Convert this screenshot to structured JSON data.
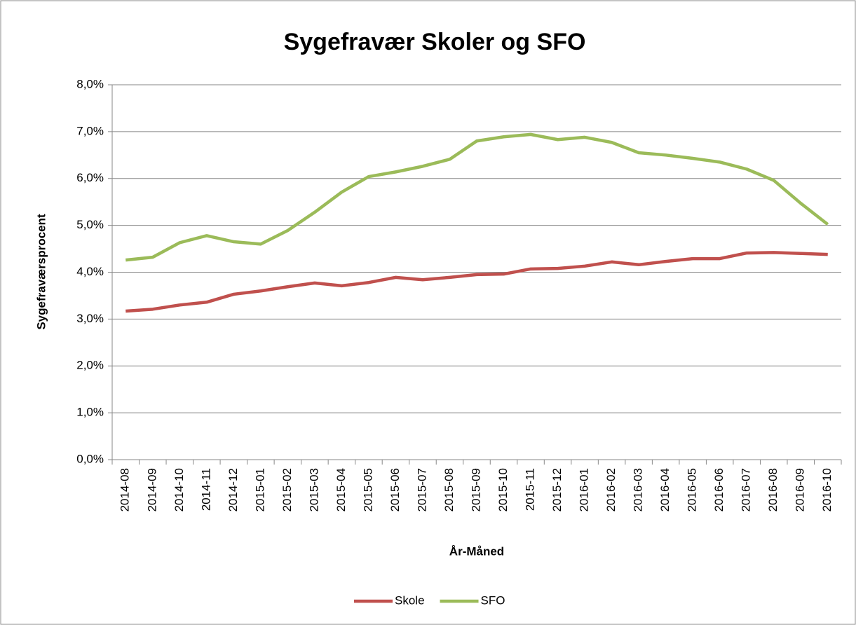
{
  "chart_data": {
    "type": "line",
    "title": "Sygefravær Skoler og SFO",
    "xlabel": "År-Måned",
    "ylabel": "Sygefraværsprocent",
    "categories": [
      "2014-08",
      "2014-09",
      "2014-10",
      "2014-11",
      "2014-12",
      "2015-01",
      "2015-02",
      "2015-03",
      "2015-04",
      "2015-05",
      "2015-06",
      "2015-07",
      "2015-08",
      "2015-09",
      "2015-10",
      "2015-11",
      "2015-12",
      "2016-01",
      "2016-02",
      "2016-03",
      "2016-04",
      "2016-05",
      "2016-06",
      "2016-07",
      "2016-08",
      "2016-09",
      "2016-10"
    ],
    "series": [
      {
        "name": "Skole",
        "color": "#c0504d",
        "values": [
          3.17,
          3.21,
          3.3,
          3.36,
          3.53,
          3.6,
          3.69,
          3.77,
          3.71,
          3.78,
          3.89,
          3.84,
          3.89,
          3.95,
          3.96,
          4.07,
          4.08,
          4.13,
          4.22,
          4.16,
          4.23,
          4.29,
          4.29,
          4.41,
          4.42,
          4.4,
          4.38
        ]
      },
      {
        "name": "SFO",
        "color": "#9bbb59",
        "values": [
          4.26,
          4.32,
          4.63,
          4.78,
          4.65,
          4.6,
          4.89,
          5.28,
          5.71,
          6.04,
          6.14,
          6.26,
          6.41,
          6.8,
          6.89,
          6.94,
          6.83,
          6.88,
          6.77,
          6.55,
          6.5,
          6.43,
          6.35,
          6.2,
          5.96,
          5.47,
          5.02
        ]
      }
    ],
    "ylim": [
      0,
      8
    ],
    "yticks": [
      {
        "value": 0,
        "label": "0,0%"
      },
      {
        "value": 1,
        "label": "1,0%"
      },
      {
        "value": 2,
        "label": "2,0%"
      },
      {
        "value": 3,
        "label": "3,0%"
      },
      {
        "value": 4,
        "label": "4,0%"
      },
      {
        "value": 5,
        "label": "5,0%"
      },
      {
        "value": 6,
        "label": "6,0%"
      },
      {
        "value": 7,
        "label": "7,0%"
      },
      {
        "value": 8,
        "label": "8,0%"
      }
    ],
    "grid": true,
    "legend": "bottom"
  }
}
